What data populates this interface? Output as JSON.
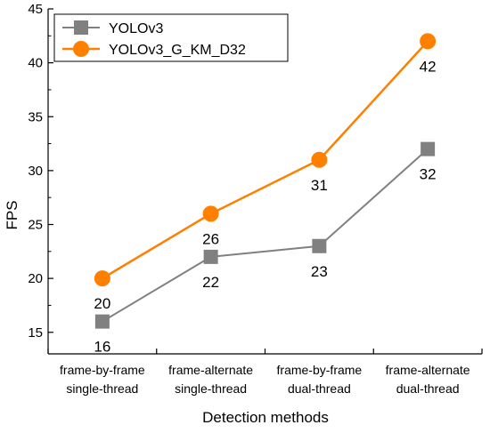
{
  "chart_data": {
    "type": "line",
    "xlabel": "Detection methods",
    "ylabel": "FPS",
    "ylim": [
      13,
      45
    ],
    "yticks": [
      15,
      20,
      25,
      30,
      35,
      40,
      45
    ],
    "categories": [
      [
        "frame-by-frame",
        "single-thread"
      ],
      [
        "frame-alternate",
        "single-thread"
      ],
      [
        "frame-by-frame",
        "dual-thread"
      ],
      [
        "frame-alternate",
        "dual-thread"
      ]
    ],
    "series": [
      {
        "name": "YOLOv3",
        "values": [
          16,
          22,
          23,
          32
        ],
        "color": "#808080",
        "marker": "square",
        "label_position": "below"
      },
      {
        "name": "YOLOv3_G_KM_D32",
        "values": [
          20,
          26,
          31,
          42
        ],
        "color": "#ff8000",
        "marker": "circle",
        "label_position": "below"
      }
    ],
    "legend": "top-left",
    "grid": false
  }
}
